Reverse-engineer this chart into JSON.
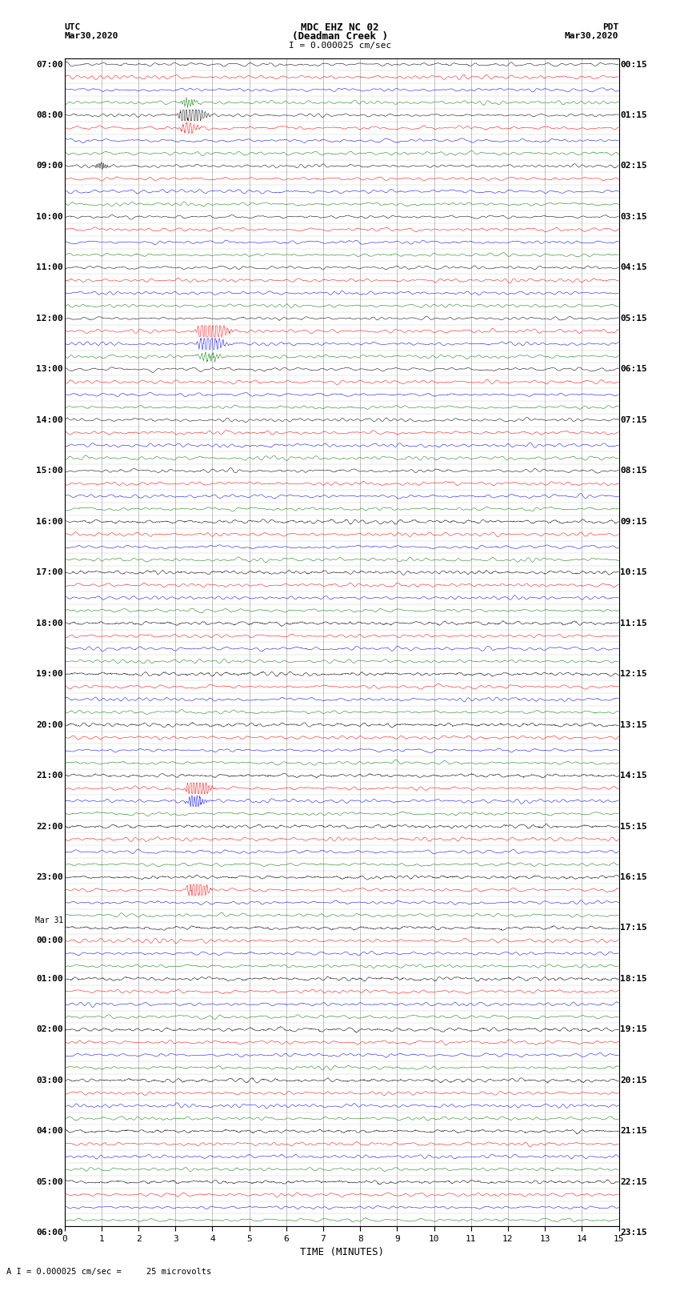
{
  "title_line1": "MDC EHZ NC 02",
  "title_line2": "(Deadman Creek )",
  "title_line3": "I = 0.000025 cm/sec",
  "utc_label": "UTC",
  "utc_date": "Mar30,2020",
  "pdt_label": "PDT",
  "pdt_date": "Mar30,2020",
  "xlabel": "TIME (MINUTES)",
  "bottom_label": "A I = 0.000025 cm/sec =     25 microvolts",
  "left_times": [
    "07:00",
    "",
    "",
    "",
    "08:00",
    "",
    "",
    "",
    "09:00",
    "",
    "",
    "",
    "10:00",
    "",
    "",
    "",
    "11:00",
    "",
    "",
    "",
    "12:00",
    "",
    "",
    "",
    "13:00",
    "",
    "",
    "",
    "14:00",
    "",
    "",
    "",
    "15:00",
    "",
    "",
    "",
    "16:00",
    "",
    "",
    "",
    "17:00",
    "",
    "",
    "",
    "18:00",
    "",
    "",
    "",
    "19:00",
    "",
    "",
    "",
    "20:00",
    "",
    "",
    "",
    "21:00",
    "",
    "",
    "",
    "22:00",
    "",
    "",
    "",
    "23:00",
    "",
    "",
    "",
    "Mar 31",
    "00:00",
    "",
    "",
    "01:00",
    "",
    "",
    "",
    "02:00",
    "",
    "",
    "",
    "03:00",
    "",
    "",
    "",
    "04:00",
    "",
    "",
    "",
    "05:00",
    "",
    "",
    "",
    "06:00",
    "",
    "",
    ""
  ],
  "right_times": [
    "00:15",
    "",
    "",
    "",
    "01:15",
    "",
    "",
    "",
    "02:15",
    "",
    "",
    "",
    "03:15",
    "",
    "",
    "",
    "04:15",
    "",
    "",
    "",
    "05:15",
    "",
    "",
    "",
    "06:15",
    "",
    "",
    "",
    "07:15",
    "",
    "",
    "",
    "08:15",
    "",
    "",
    "",
    "09:15",
    "",
    "",
    "",
    "10:15",
    "",
    "",
    "",
    "11:15",
    "",
    "",
    "",
    "12:15",
    "",
    "",
    "",
    "13:15",
    "",
    "",
    "",
    "14:15",
    "",
    "",
    "",
    "15:15",
    "",
    "",
    "",
    "16:15",
    "",
    "",
    "",
    "17:15",
    "",
    "",
    "",
    "18:15",
    "",
    "",
    "",
    "19:15",
    "",
    "",
    "",
    "20:15",
    "",
    "",
    "",
    "21:15",
    "",
    "",
    "",
    "22:15",
    "",
    "",
    "",
    "23:15",
    "",
    "",
    ""
  ],
  "n_rows": 92,
  "colors": [
    "black",
    "red",
    "blue",
    "green"
  ],
  "bg_color": "white",
  "grid_color": "#aaaaaa",
  "x_min": 0,
  "x_max": 15,
  "x_ticks": [
    0,
    1,
    2,
    3,
    4,
    5,
    6,
    7,
    8,
    9,
    10,
    11,
    12,
    13,
    14,
    15
  ],
  "seed": 42
}
